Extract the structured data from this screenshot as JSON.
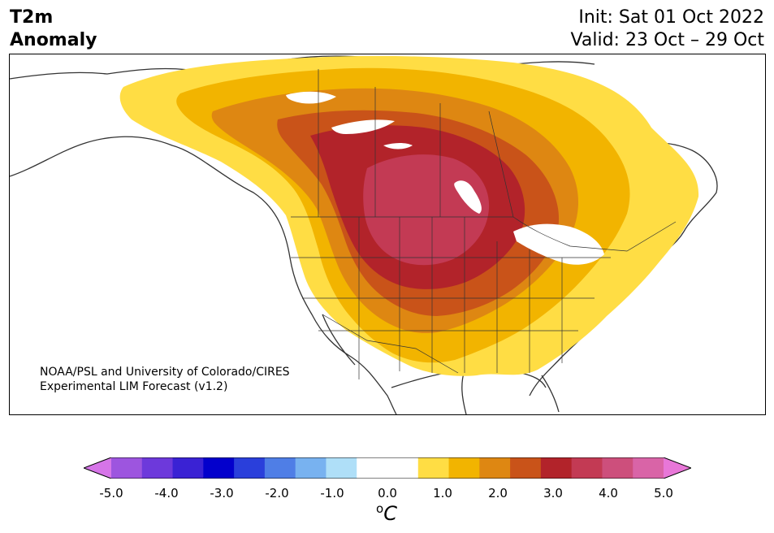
{
  "title": {
    "line1": "T2m",
    "line2": "Anomaly"
  },
  "dates": {
    "init": "Init: Sat 01 Oct 2022",
    "valid": "Valid: 23 Oct – 29 Oct"
  },
  "credit": {
    "line1": "NOAA/PSL and University of Colorado/CIRES",
    "line2": "Experimental LIM Forecast (v1.2)"
  },
  "colorbar": {
    "colors": [
      "#d675e8",
      "#9d55df",
      "#6d39db",
      "#3a22d4",
      "#0300cc",
      "#2a3fdb",
      "#4f7ee6",
      "#78b2f0",
      "#afdff8",
      "#ffffff",
      "#ffffff",
      "#ffdd44",
      "#f2b400",
      "#de8712",
      "#c95319",
      "#b2232a",
      "#c33a54",
      "#cd4f7c",
      "#d964a7",
      "#e877d8"
    ],
    "ticks": [
      "-5.0",
      "-4.0",
      "-3.0",
      "-2.0",
      "-1.0",
      "0.0",
      "1.0",
      "2.0",
      "3.0",
      "4.0",
      "5.0"
    ],
    "unit_super": "o",
    "unit": "C"
  },
  "map": {
    "anomaly_levels": [
      {
        "level": "0.5–1.0",
        "color": "#ffdd44"
      },
      {
        "level": "1.0–1.5",
        "color": "#f2b400"
      },
      {
        "level": "1.5–2.0",
        "color": "#de8712"
      },
      {
        "level": "2.0–2.5",
        "color": "#c95319"
      },
      {
        "level": "2.5–3.0",
        "color": "#b2232a"
      },
      {
        "level": "3.0–3.5",
        "color": "#c33a54"
      }
    ],
    "border_color": "#333333"
  }
}
